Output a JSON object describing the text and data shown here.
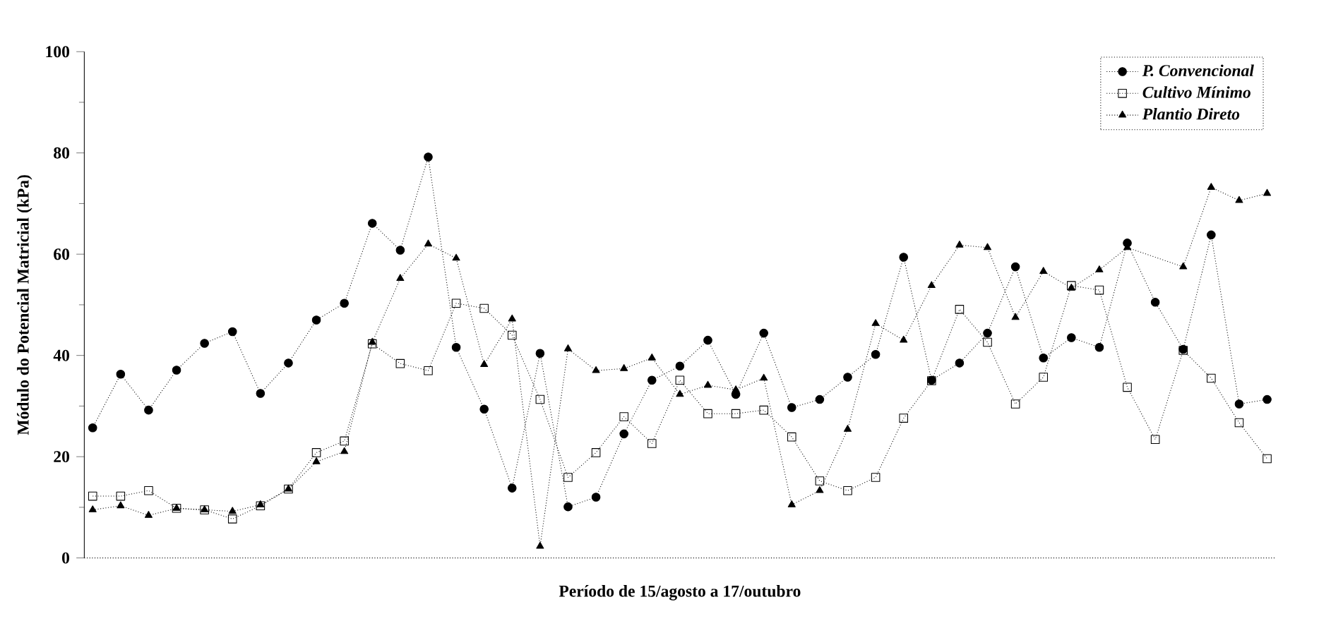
{
  "chart_data": {
    "type": "line",
    "xlabel": "Período de 15/agosto a 17/outubro",
    "ylabel": "Módulo do Potencial Matricial (kPa)",
    "categories": [
      null,
      null,
      null,
      null,
      null,
      null,
      null,
      null,
      null,
      null,
      null,
      null,
      null,
      null,
      null,
      null,
      null,
      null,
      null,
      null,
      null,
      null,
      null,
      null,
      null,
      null,
      null,
      null,
      null,
      null,
      null,
      null,
      null,
      null,
      null,
      null,
      null,
      null,
      null,
      null,
      null,
      null,
      null
    ],
    "ylim": [
      0,
      100
    ],
    "yticks": [
      0,
      20,
      40,
      60,
      80,
      100
    ],
    "legend": "top right",
    "line_style": "dotted",
    "grid": false,
    "series": [
      {
        "name": "P. Convencional",
        "color": "#000000",
        "marker": "circle",
        "values": [
          25.7,
          36.3,
          29.2,
          37.1,
          42.4,
          44.7,
          32.5,
          38.5,
          47,
          50.3,
          66.1,
          60.8,
          79.2,
          41.6,
          29.4,
          13.8,
          40.4,
          10.1,
          12,
          24.5,
          35.1,
          37.9,
          43,
          32.3,
          44.4,
          29.7,
          31.3,
          35.7,
          40.2,
          59.4,
          35.1,
          38.5,
          44.4,
          57.5,
          39.5,
          43.5,
          41.6,
          62.2,
          50.5,
          41.2,
          63.8,
          30.4,
          31.3
        ]
      },
      {
        "name": "Cultivo Mínimo",
        "color": "#000000",
        "marker": "square",
        "values": [
          12.2,
          12.2,
          13.3,
          9.8,
          9.5,
          7.7,
          10.3,
          13.6,
          20.8,
          23.1,
          42.3,
          38.4,
          37,
          50.3,
          49.3,
          44,
          31.3,
          15.9,
          20.8,
          27.9,
          22.6,
          35.1,
          28.5,
          28.5,
          29.2,
          23.9,
          15.2,
          13.3,
          15.9,
          27.6,
          35,
          49.1,
          42.6,
          30.4,
          35.7,
          53.8,
          52.9,
          33.7,
          23.4,
          41,
          35.5,
          26.7,
          19.6
        ]
      },
      {
        "name": "Plantio Direto",
        "color": "#000000",
        "marker": "triangle",
        "values": [
          9.5,
          10.3,
          8.4,
          9.8,
          9.5,
          9.2,
          10.5,
          13.6,
          19,
          21,
          42.6,
          55.2,
          62,
          59.2,
          38.2,
          47.2,
          2.3,
          41.3,
          37,
          37.4,
          39.5,
          32.3,
          34.1,
          33.2,
          35.5,
          10.5,
          13.3,
          25.4,
          46.3,
          43,
          53.8,
          61.8,
          61.3,
          47.5,
          56.6,
          53.3,
          56.9,
          61.3,
          null,
          57.5,
          73.2,
          70.6,
          72
        ]
      }
    ]
  }
}
